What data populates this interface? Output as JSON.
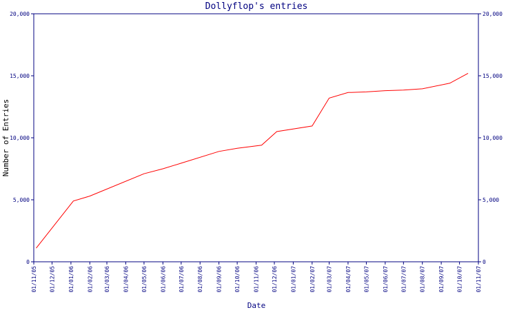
{
  "chart_data": {
    "type": "line",
    "title": "Dollyflop's entries",
    "xlabel": "Date",
    "ylabel": "Number of Entries",
    "ylim": [
      0,
      20000
    ],
    "y_ticks": [
      0,
      5000,
      10000,
      15000,
      20000
    ],
    "y_tick_labels": [
      "0",
      "5,000",
      "10,000",
      "15,000",
      "20,000"
    ],
    "secondary_y_axis": true,
    "grid": false,
    "colors": {
      "line": "#ff0000",
      "axis": "#000080",
      "title": "#000080",
      "ylabel": "#000000"
    },
    "x_tick_labels": [
      "01/11/05",
      "01/12/05",
      "01/01/06",
      "01/02/06",
      "01/03/06",
      "01/04/06",
      "01/05/06",
      "01/06/06",
      "01/07/06",
      "01/08/06",
      "01/09/06",
      "01/10/06",
      "01/11/06",
      "01/12/06",
      "01/01/07",
      "01/02/07",
      "01/03/07",
      "01/04/07",
      "01/05/07",
      "01/06/07",
      "01/07/07",
      "01/08/07",
      "01/09/07",
      "01/10/07",
      "01/11/07"
    ],
    "x": [
      "2005-11-05",
      "2006-01-05",
      "2006-02-01",
      "2006-05-01",
      "2006-06-01",
      "2006-07-01",
      "2006-09-01",
      "2006-10-01",
      "2006-11-10",
      "2006-12-05",
      "2007-02-01",
      "2007-03-01",
      "2007-04-01",
      "2007-05-01",
      "2007-06-01",
      "2007-07-01",
      "2007-08-01",
      "2007-09-15",
      "2007-10-15"
    ],
    "series": [
      {
        "values": [
          1100,
          4900,
          5300,
          7100,
          7500,
          7950,
          8900,
          9150,
          9400,
          10500,
          10950,
          13200,
          13650,
          13700,
          13800,
          13850,
          13950,
          14400,
          15200
        ]
      }
    ]
  }
}
